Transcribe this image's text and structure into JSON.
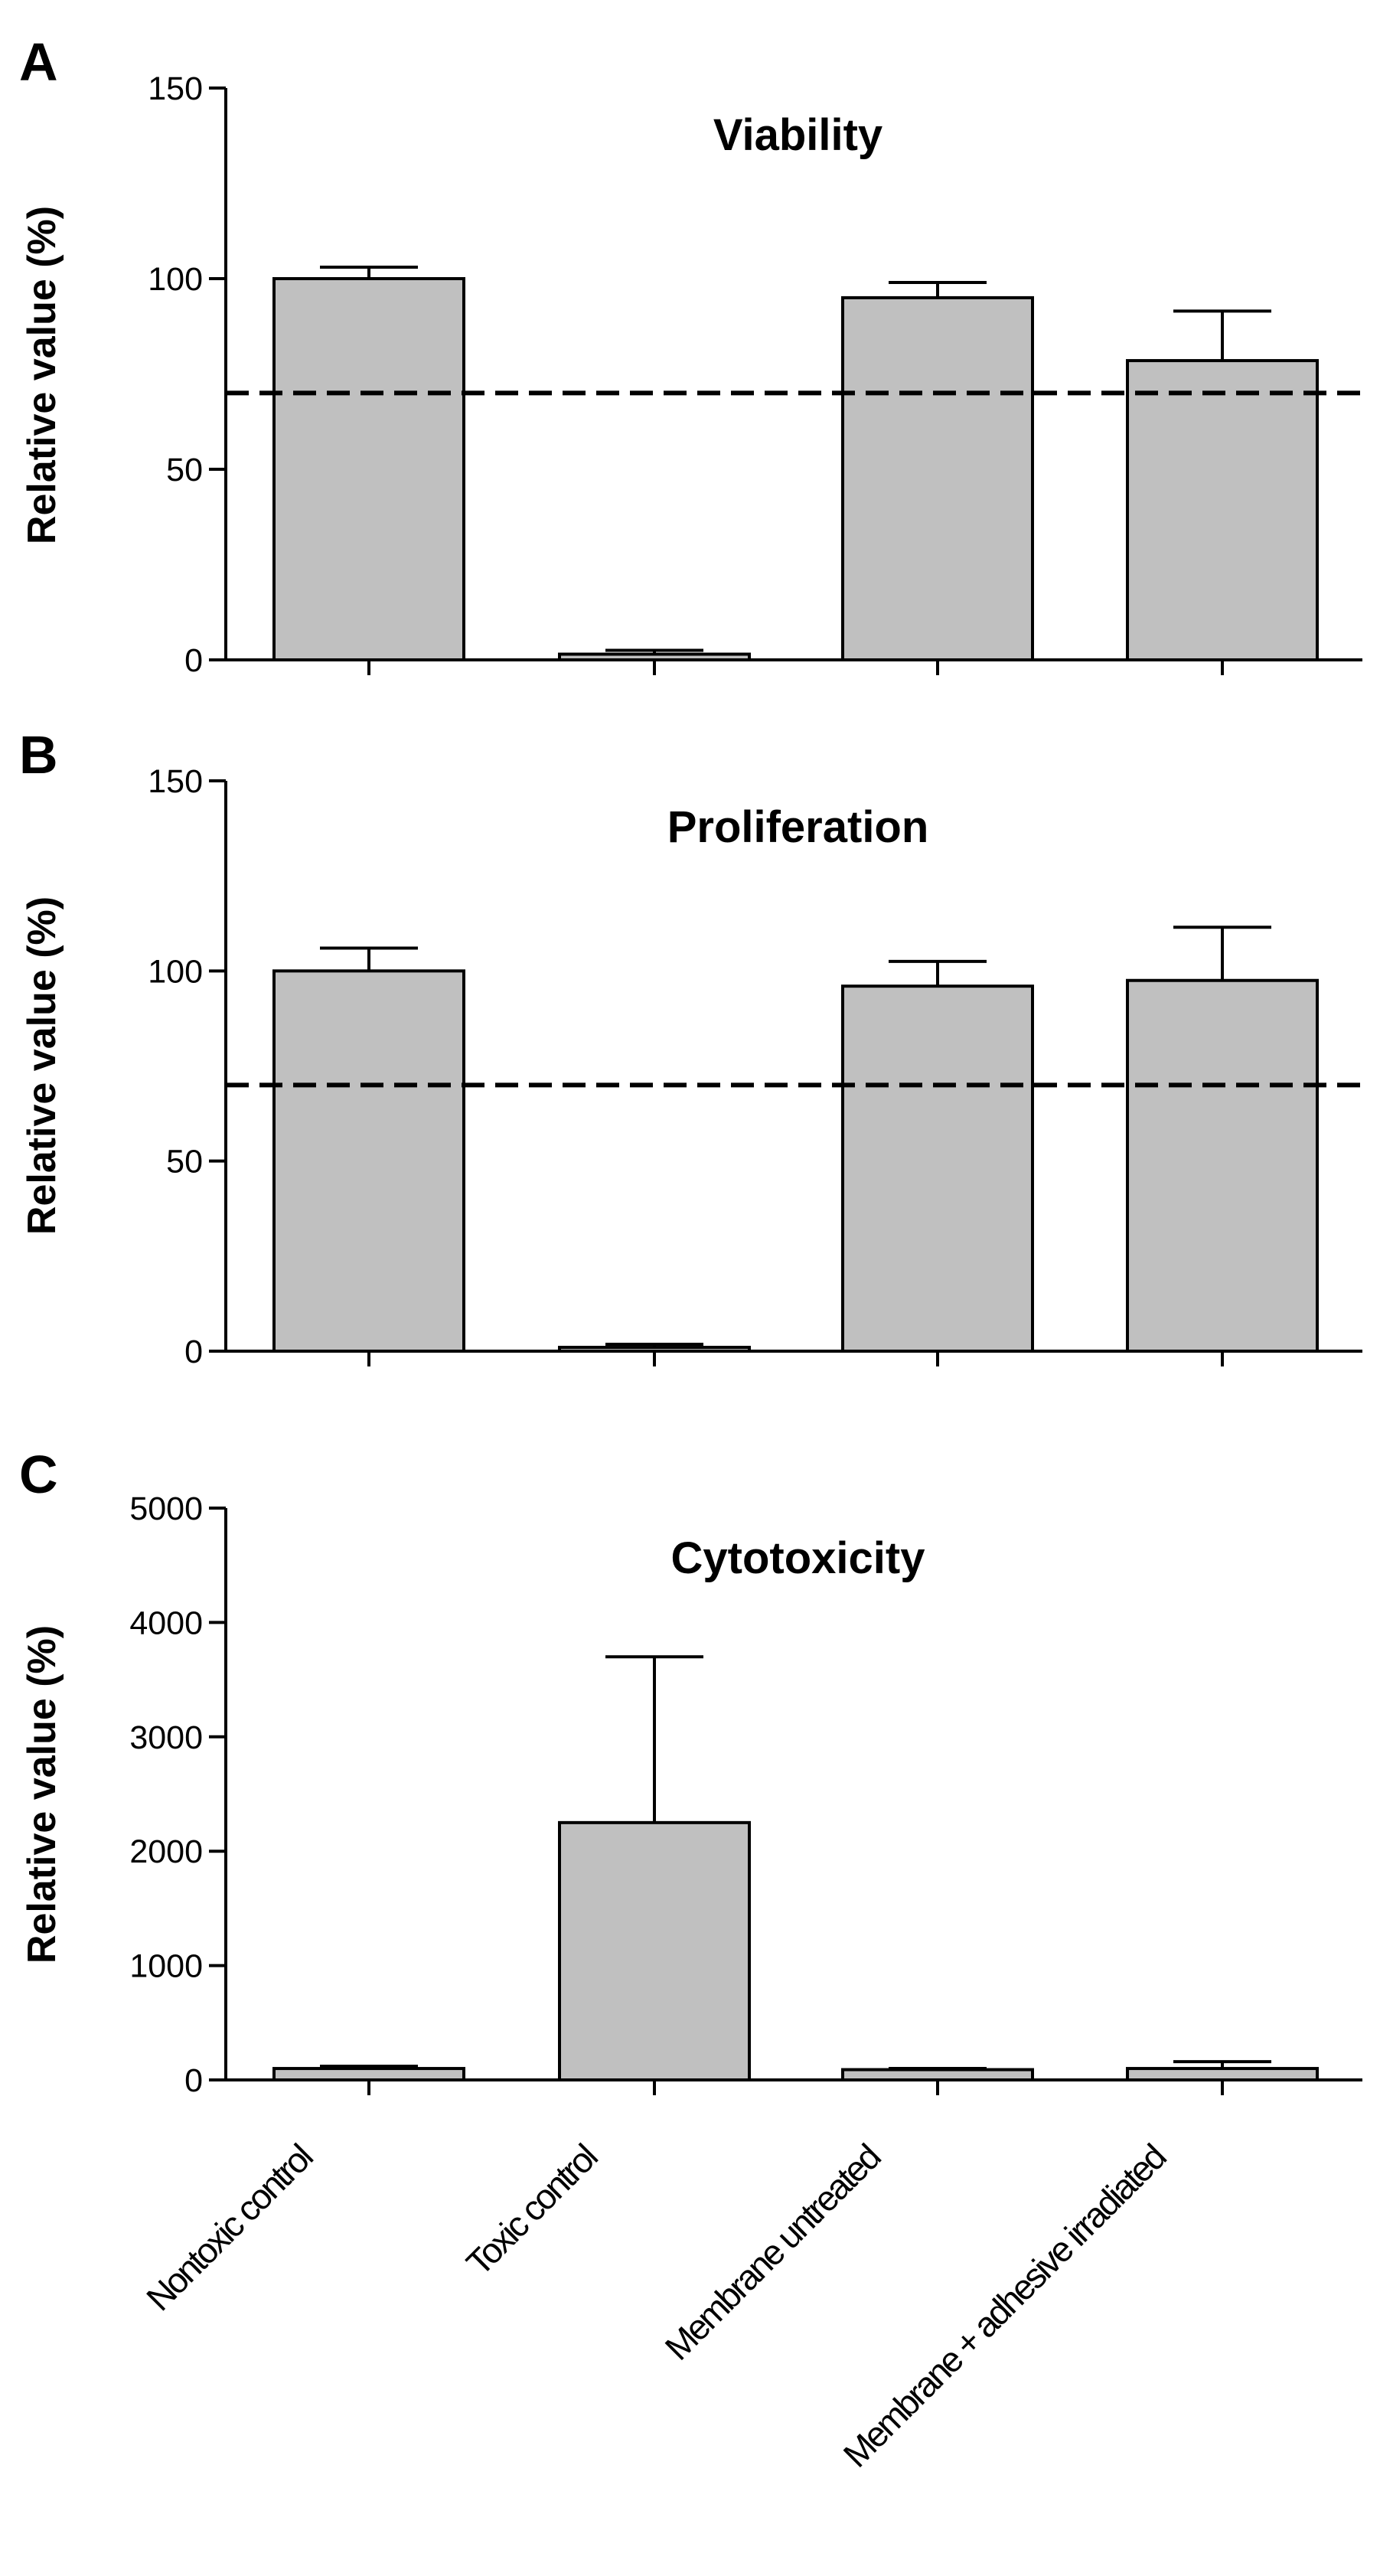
{
  "categories": [
    "Nontoxic control",
    "Toxic control",
    "Membrane untreated",
    "Membrane + adhesive irradiated"
  ],
  "colors": {
    "bar_fill": "#c0c0c0",
    "axis": "#000000",
    "reference_line": "#000000"
  },
  "chart_data": [
    {
      "type": "bar",
      "panel": "A",
      "title": "Viability",
      "ylabel": "Relative value (%)",
      "ylim": [
        0,
        150
      ],
      "yticks": [
        0,
        50,
        100,
        150
      ],
      "categories": [
        "Nontoxic control",
        "Toxic control",
        "Membrane untreated",
        "Membrane + adhesive irradiated"
      ],
      "values": [
        100,
        1.5,
        95,
        78.5
      ],
      "errors": [
        3,
        1,
        4,
        13
      ],
      "reference_line": 70
    },
    {
      "type": "bar",
      "panel": "B",
      "title": "Proliferation",
      "ylabel": "Relative value (%)",
      "ylim": [
        0,
        150
      ],
      "yticks": [
        0,
        50,
        100,
        150
      ],
      "categories": [
        "Nontoxic control",
        "Toxic control",
        "Membrane untreated",
        "Membrane + adhesive irradiated"
      ],
      "values": [
        100,
        1,
        96,
        97.5
      ],
      "errors": [
        6,
        0.8,
        6.5,
        14
      ],
      "reference_line": 70
    },
    {
      "type": "bar",
      "panel": "C",
      "title": "Cytotoxicity",
      "ylabel": "Relative value (%)",
      "ylim": [
        0,
        5000
      ],
      "yticks": [
        0,
        1000,
        2000,
        3000,
        4000,
        5000
      ],
      "categories": [
        "Nontoxic control",
        "Toxic control",
        "Membrane untreated",
        "Membrane + adhesive irradiated"
      ],
      "values": [
        100,
        2250,
        90,
        100
      ],
      "errors": [
        20,
        1450,
        10,
        60
      ]
    }
  ]
}
